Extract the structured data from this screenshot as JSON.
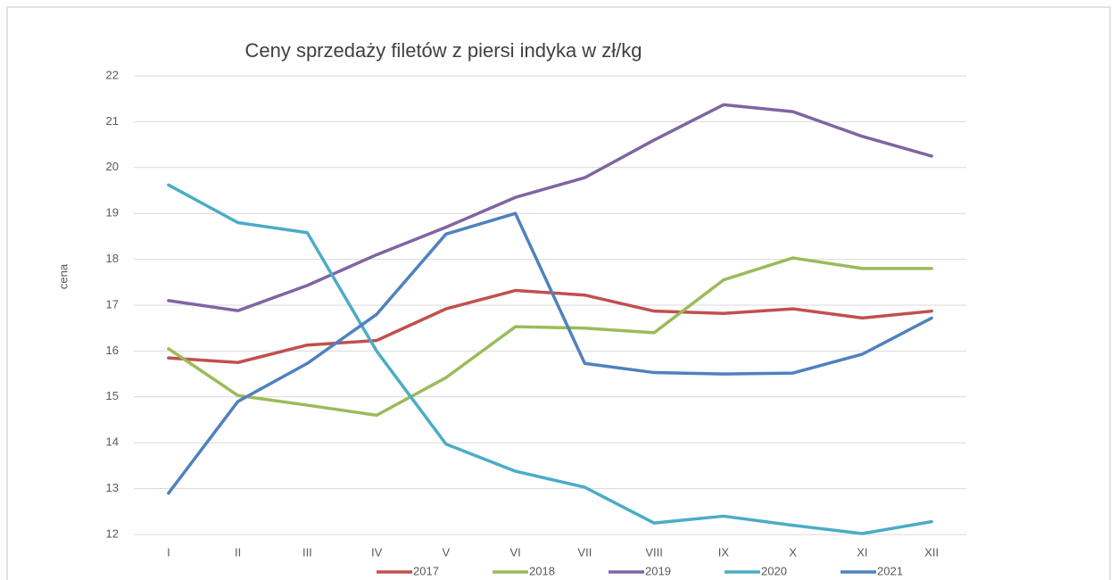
{
  "chart_data": {
    "type": "line",
    "title": "Ceny sprzedaży filetów z  piersi indyka w zł/kg",
    "y_label": "cena",
    "categories": [
      "I",
      "II",
      "III",
      "IV",
      "V",
      "VI",
      "VII",
      "VIII",
      "IX",
      "X",
      "XI",
      "XII"
    ],
    "series": [
      {
        "name": "2017",
        "color": "#c0504d",
        "values": [
          15.85,
          15.75,
          16.13,
          16.23,
          16.92,
          17.32,
          17.22,
          16.87,
          16.82,
          16.92,
          16.72,
          16.87
        ]
      },
      {
        "name": "2018",
        "color": "#9bbb59",
        "values": [
          16.05,
          15.03,
          14.82,
          14.6,
          15.42,
          16.53,
          16.5,
          16.4,
          17.55,
          18.03,
          17.8,
          17.8
        ]
      },
      {
        "name": "2019",
        "color": "#8064a2",
        "values": [
          17.1,
          16.88,
          17.43,
          18.1,
          18.7,
          19.35,
          19.78,
          20.6,
          21.37,
          21.22,
          20.68,
          20.25
        ]
      },
      {
        "name": "2020",
        "color": "#4bacc6",
        "values": [
          19.62,
          18.8,
          18.58,
          16.0,
          13.97,
          13.38,
          13.03,
          12.25,
          12.4,
          12.2,
          12.02,
          12.28
        ]
      },
      {
        "name": "2021",
        "color": "#4f81bd",
        "values": [
          12.9,
          14.9,
          15.73,
          16.8,
          18.55,
          19.0,
          15.73,
          15.53,
          15.5,
          15.52,
          15.93,
          16.72
        ]
      }
    ],
    "ylim": [
      12,
      22
    ],
    "yticks": [
      12,
      13,
      14,
      15,
      16,
      17,
      18,
      19,
      20,
      21,
      22
    ],
    "grid": true,
    "legend": "bottom"
  }
}
